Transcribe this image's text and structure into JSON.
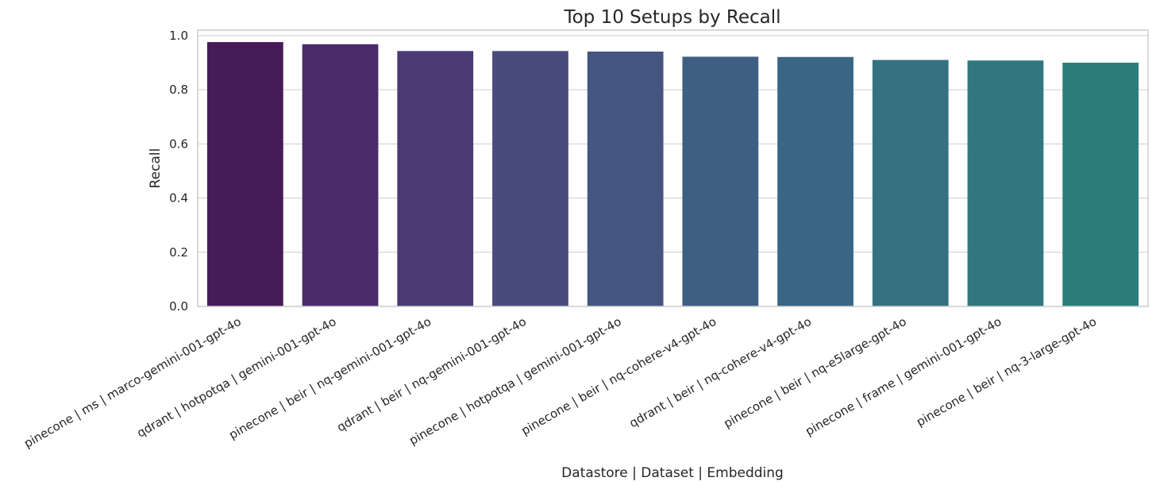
{
  "chart_data": {
    "type": "bar",
    "title": "Top 10 Setups by Recall",
    "xlabel": "Datastore | Dataset | Embedding",
    "ylabel": "Recall",
    "ylim": [
      0,
      1.02
    ],
    "yticks": [
      0.0,
      0.2,
      0.4,
      0.6,
      0.8,
      1.0
    ],
    "ytick_labels": [
      "0.0",
      "0.2",
      "0.4",
      "0.6",
      "0.8",
      "1.0"
    ],
    "grid": "horizontal",
    "categories": [
      "pinecone | ms | marco-gemini-001-gpt-4o",
      "qdrant | hotpotqa | gemini-001-gpt-4o",
      "pinecone | beir | nq-gemini-001-gpt-4o",
      "qdrant | beir | nq-gemini-001-gpt-4o",
      "pinecone | hotpotqa | gemini-001-gpt-4o",
      "pinecone | beir | nq-cohere-v4-gpt-4o",
      "qdrant | beir | nq-cohere-v4-gpt-4o",
      "pinecone | beir | nq-e5large-gpt-4o",
      "pinecone | frame | gemini-001-gpt-4o",
      "pinecone | beir | nq-3-large-gpt-4o"
    ],
    "values": [
      0.976,
      0.968,
      0.943,
      0.943,
      0.941,
      0.922,
      0.921,
      0.91,
      0.908,
      0.9
    ],
    "colors": [
      "#451c58",
      "#4a2a6b",
      "#4a3a75",
      "#494b7c",
      "#44567f",
      "#3d5f82",
      "#386684",
      "#347181",
      "#32777f",
      "#2d7e7a"
    ],
    "tick_label_rotation_deg": 30
  }
}
